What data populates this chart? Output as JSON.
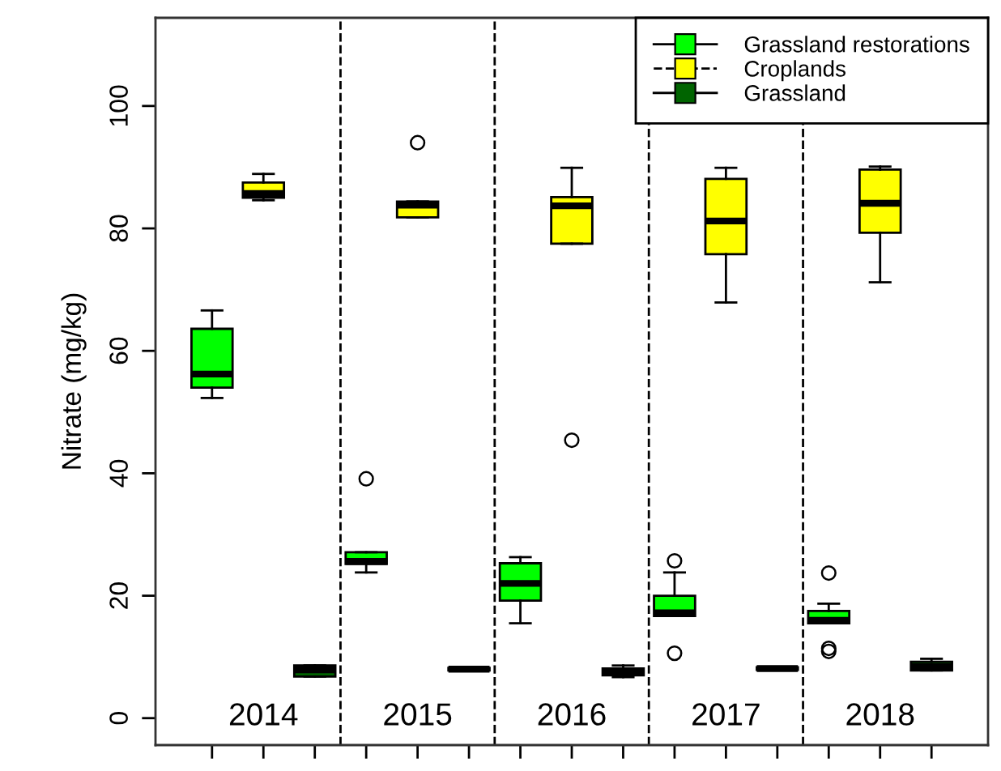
{
  "chart_data": {
    "type": "box",
    "ylabel": "Nitrate (mg/kg)",
    "ylim": [
      -4.4,
      114.4
    ],
    "yticks": [
      0,
      20,
      40,
      60,
      80,
      100
    ],
    "categories": [
      "2014",
      "2015",
      "2016",
      "2017",
      "2018"
    ],
    "legend": "top right",
    "series": [
      {
        "name": "Grassland restorations",
        "color": "#00ff00",
        "line_style": "solid",
        "boxes": [
          {
            "low": 52.3,
            "q1": 54.0,
            "median": 56.2,
            "q3": 63.6,
            "high": 66.6
          },
          {
            "low": 23.8,
            "q1": 25.2,
            "median": 25.6,
            "q3": 27.1,
            "high": 27.1,
            "outliers": [
              39.1
            ]
          },
          {
            "low": 15.5,
            "q1": 19.2,
            "median": 22.0,
            "q3": 25.3,
            "high": 26.3
          },
          {
            "low": 16.7,
            "q1": 16.7,
            "median": 17.2,
            "q3": 20.0,
            "high": 23.8,
            "outliers": [
              25.7,
              10.6
            ]
          },
          {
            "low": 15.5,
            "q1": 15.5,
            "median": 16.0,
            "q3": 17.5,
            "high": 18.7,
            "outliers": [
              23.7,
              11.4,
              10.9
            ]
          }
        ]
      },
      {
        "name": "Croplands",
        "color": "#ffff00",
        "line_style": "dashed",
        "boxes": [
          {
            "low": 84.6,
            "q1": 85.0,
            "median": 85.7,
            "q3": 87.5,
            "high": 88.9
          },
          {
            "low": 81.8,
            "q1": 81.8,
            "median": 83.8,
            "q3": 84.4,
            "high": 84.4,
            "outliers": [
              94.0
            ]
          },
          {
            "low": 77.5,
            "q1": 77.5,
            "median": 83.7,
            "q3": 85.1,
            "high": 89.9,
            "outliers": [
              45.4
            ]
          },
          {
            "low": 67.9,
            "q1": 75.8,
            "median": 81.2,
            "q3": 88.1,
            "high": 89.9
          },
          {
            "low": 71.2,
            "q1": 79.3,
            "median": 84.1,
            "q3": 89.6,
            "high": 90.1
          }
        ]
      },
      {
        "name": "Grassland",
        "color": "#006400",
        "line_style": "solid",
        "boxes": [
          {
            "low": 6.8,
            "q1": 6.8,
            "median": 7.9,
            "q3": 8.6,
            "high": 8.6
          },
          {
            "low": 7.8,
            "q1": 7.8,
            "median": 8.0,
            "q3": 8.2,
            "high": 8.2
          },
          {
            "low": 6.7,
            "q1": 7.0,
            "median": 7.5,
            "q3": 8.1,
            "high": 8.6
          },
          {
            "low": 7.9,
            "q1": 7.9,
            "median": 8.1,
            "q3": 8.3,
            "high": 8.3
          },
          {
            "low": 7.8,
            "q1": 7.8,
            "median": 8.4,
            "q3": 9.2,
            "high": 9.7
          }
        ]
      }
    ]
  }
}
